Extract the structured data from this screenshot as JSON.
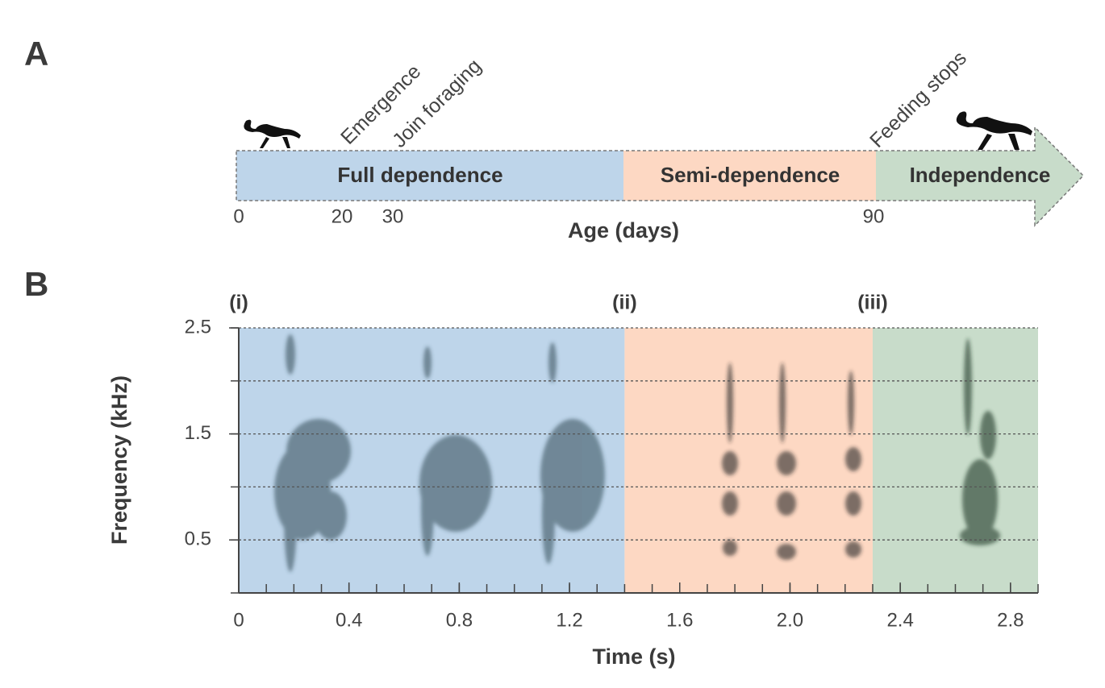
{
  "panel_a": {
    "letter": "A",
    "events": [
      "Emergence",
      "Join foraging",
      "Feeding stops"
    ],
    "stages": [
      {
        "name": "Full dependence",
        "color": "#1a6aa8"
      },
      {
        "name": "Semi-dependence",
        "color": "#f0894a"
      },
      {
        "name": "Independence",
        "color": "#2e7d40"
      }
    ],
    "ticks": [
      "0",
      "20",
      "30",
      "90"
    ],
    "axis_label": "Age (days)"
  },
  "chart_data": {
    "type": "spectrogram",
    "letter": "B",
    "x_label": "Time (s)",
    "y_label": "Frequency (kHz)",
    "xlim": [
      0,
      2.9
    ],
    "ylim": [
      0,
      2.5
    ],
    "xticks": [
      0,
      0.4,
      0.8,
      1.2,
      1.6,
      {
        "value": 2,
        "label": "2.0"
      },
      2.4,
      2.8
    ],
    "yticks": [
      0.5,
      1.5,
      2.5
    ],
    "xminor": 0.1,
    "yminor": 0.5,
    "grid": [
      0.5,
      1,
      1.5,
      2,
      2.5
    ],
    "regions": [
      {
        "label": "(i)",
        "from": 0,
        "to": 1.4,
        "color": "#bed5ea"
      },
      {
        "label": "(ii)",
        "from": 1.4,
        "to": 2.3,
        "color": "#fdd8c3"
      },
      {
        "label": "(iii)",
        "from": 2.3,
        "to": 2.9,
        "color": "#c8dcca"
      }
    ]
  }
}
